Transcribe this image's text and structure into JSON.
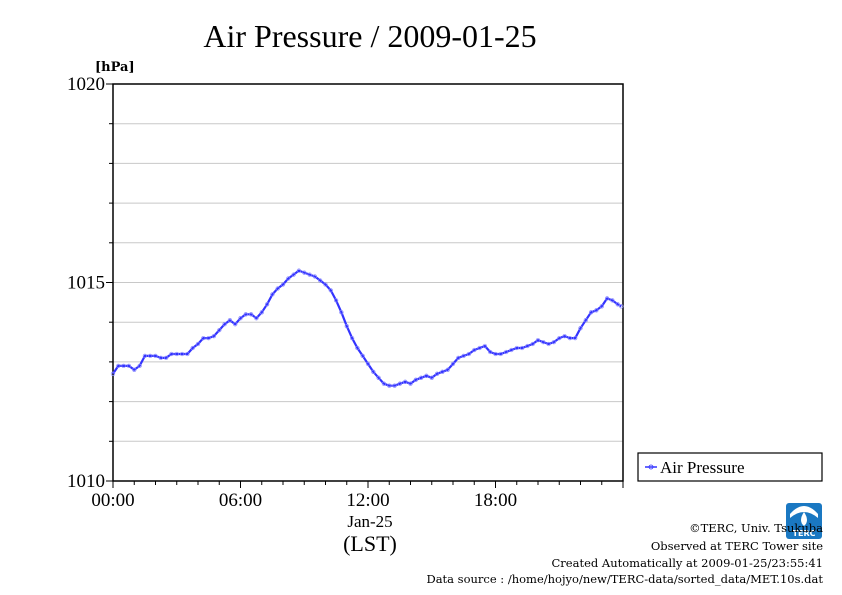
{
  "chart_data": {
    "type": "line",
    "title": "Air Pressure / 2009-01-25",
    "ylabel": "[hPa]",
    "xlabel": "(LST)",
    "date_label": "Jan-25",
    "ylim": [
      1010,
      1020
    ],
    "y_ticks": [
      "1010",
      "1015",
      "1020"
    ],
    "xlim": [
      0,
      24
    ],
    "x_ticks": [
      "00:00",
      "06:00",
      "12:00",
      "18:00"
    ],
    "grid": true,
    "legend_position": "right-bottom",
    "series": [
      {
        "name": "Air Pressure",
        "color": "#3333ff",
        "x": [
          0.0,
          0.25,
          0.5,
          0.75,
          1.0,
          1.25,
          1.5,
          1.75,
          2.0,
          2.25,
          2.5,
          2.75,
          3.0,
          3.25,
          3.5,
          3.75,
          4.0,
          4.25,
          4.5,
          4.75,
          5.0,
          5.25,
          5.5,
          5.75,
          6.0,
          6.25,
          6.5,
          6.75,
          7.0,
          7.25,
          7.5,
          7.75,
          8.0,
          8.25,
          8.5,
          8.75,
          9.0,
          9.25,
          9.5,
          9.75,
          10.0,
          10.25,
          10.5,
          10.75,
          11.0,
          11.25,
          11.5,
          11.75,
          12.0,
          12.25,
          12.5,
          12.75,
          13.0,
          13.25,
          13.5,
          13.75,
          14.0,
          14.25,
          14.5,
          14.75,
          15.0,
          15.25,
          15.5,
          15.75,
          16.0,
          16.25,
          16.5,
          16.75,
          17.0,
          17.25,
          17.5,
          17.75,
          18.0,
          18.25,
          18.5,
          18.75,
          19.0,
          19.25,
          19.5,
          19.75,
          20.0,
          20.25,
          20.5,
          20.75,
          21.0,
          21.25,
          21.5,
          21.75,
          22.0,
          22.25,
          22.5,
          22.75,
          23.0,
          23.25,
          23.5,
          23.75,
          23.92
        ],
        "values": [
          1012.7,
          1012.9,
          1012.9,
          1012.9,
          1012.8,
          1012.9,
          1013.15,
          1013.15,
          1013.15,
          1013.1,
          1013.1,
          1013.2,
          1013.2,
          1013.2,
          1013.2,
          1013.35,
          1013.45,
          1013.6,
          1013.6,
          1013.65,
          1013.8,
          1013.95,
          1014.05,
          1013.95,
          1014.1,
          1014.2,
          1014.2,
          1014.1,
          1014.25,
          1014.45,
          1014.7,
          1014.85,
          1014.95,
          1015.1,
          1015.2,
          1015.3,
          1015.25,
          1015.2,
          1015.15,
          1015.05,
          1014.95,
          1014.8,
          1014.55,
          1014.25,
          1013.9,
          1013.6,
          1013.35,
          1013.15,
          1012.95,
          1012.75,
          1012.6,
          1012.45,
          1012.4,
          1012.4,
          1012.45,
          1012.5,
          1012.45,
          1012.55,
          1012.6,
          1012.65,
          1012.6,
          1012.7,
          1012.75,
          1012.8,
          1012.95,
          1013.1,
          1013.15,
          1013.2,
          1013.3,
          1013.35,
          1013.4,
          1013.25,
          1013.2,
          1013.2,
          1013.25,
          1013.3,
          1013.35,
          1013.35,
          1013.4,
          1013.45,
          1013.55,
          1013.5,
          1013.45,
          1013.5,
          1013.6,
          1013.65,
          1013.6,
          1013.6,
          1013.85,
          1014.05,
          1014.25,
          1014.3,
          1014.4,
          1014.6,
          1014.55,
          1014.45,
          1014.4
        ]
      }
    ]
  },
  "credits": {
    "copyright": "©TERC, Univ. Tsukuba",
    "observed": "Observed at TERC Tower site",
    "created": "Created Automatically at 2009-01-25/23:55:41",
    "source": "Data source : /home/hojyo/new/TERC-data/sorted_data/MET.10s.dat"
  },
  "logo": {
    "text": "TERC",
    "color": "#1a78c2"
  }
}
